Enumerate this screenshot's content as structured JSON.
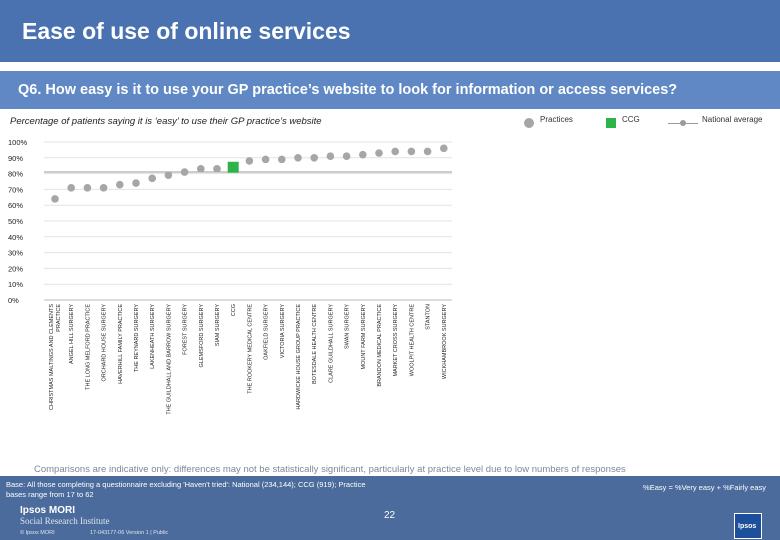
{
  "header": {
    "title": "Ease of use of online services",
    "question": "Q6. How easy is it to use your GP practice’s website to look for information or access services?",
    "subtitle": "Percentage of patients saying it is ‘easy’ to use their GP practice’s website"
  },
  "legend": {
    "practices": "Practices",
    "ccg": "CCG",
    "national": "National average"
  },
  "colors": {
    "practice": "#a6a6a6",
    "ccg": "#2db34a",
    "national": "#9a9a9a"
  },
  "chart_data": {
    "type": "scatter",
    "ylim": [
      0,
      100
    ],
    "y_ticks": [
      "0%",
      "10%",
      "20%",
      "30%",
      "40%",
      "50%",
      "60%",
      "70%",
      "80%",
      "90%",
      "100%"
    ],
    "national_average": 81,
    "categories": [
      "CHRISTMAS MALTINGS AND CLEMENTS PRACTICE",
      "ANGEL HILL SURGERY",
      "THE LONG MELFORD PRACTICE",
      "ORCHARD HOUSE SURGERY",
      "HAVERHILL FAMILY PRACTICE",
      "THE REYNARD SURGERY",
      "LAKENHEATH SURGERY",
      "THE GUILDHALL AND BARROW SURGERY",
      "FOREST SURGERY",
      "GLEMSFORD SURGERY",
      "SIAM SURGERY",
      "CCG",
      "THE ROOKERY MEDICAL CENTRE",
      "OAKFIELD SURGERY",
      "VICTORIA SURGERY",
      "HARDWICKE HOUSE GROUP PRACTICE",
      "BOTESDALE HEALTH CENTRE",
      "CLARE GUILDHALL SURGERY",
      "SWAN SURGERY",
      "MOUNT FARM SURGERY",
      "BRANDON MEDICAL PRACTICE",
      "MARKET CROSS SURGERY",
      "WOOLPIT HEALTH CENTRE",
      "STANTON",
      "WICKHAMBROOK SURGERY"
    ],
    "values": [
      64,
      71,
      71,
      71,
      73,
      74,
      77,
      79,
      81,
      83,
      83,
      84,
      88,
      89,
      89,
      90,
      90,
      91,
      91,
      92,
      93,
      94,
      94,
      94,
      96
    ],
    "ccg_index": 11
  },
  "footer": {
    "note": "Comparisons are indicative only: differences may not be statistically significant, particularly at practice level due to low numbers of responses",
    "base": "Base: All those completing a questionnaire excluding 'Haven't tried': National (234,144); CCG (919); Practice bases range from 17 to 62",
    "formula": "%Easy = %Very easy + %Fairly easy",
    "brand_line1": "Ipsos MORI",
    "brand_line2": "Social Research Institute",
    "page_number": "22",
    "copyright": "© Ipsos MORI",
    "version": "17-043177-06 Version 1 | Public",
    "logo": "Ipsos"
  }
}
